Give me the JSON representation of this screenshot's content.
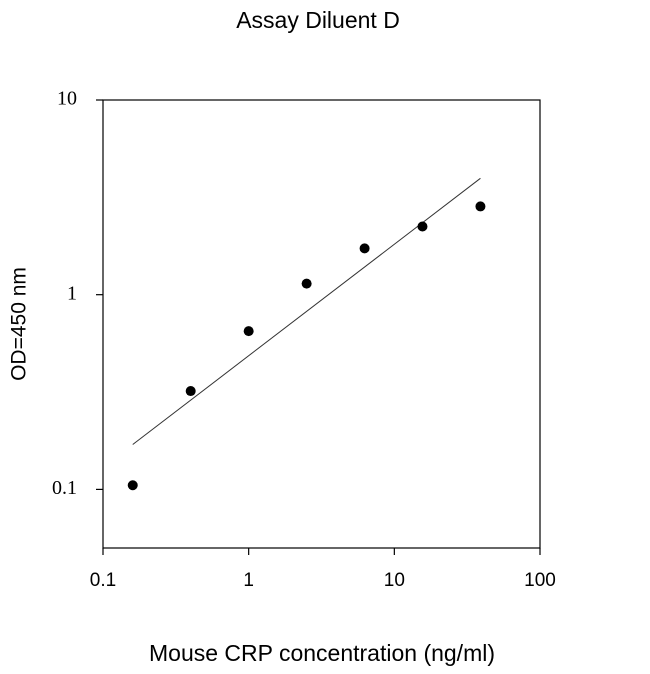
{
  "chart_data": {
    "type": "scatter",
    "title": "Assay Diluent D",
    "x_label": "Mouse CRP concentration (ng/ml)",
    "y_label": "OD=450 nm",
    "x": [
      0.16,
      0.4,
      1,
      2.5,
      6.25,
      15.6,
      39
    ],
    "values": [
      0.105,
      0.32,
      0.65,
      1.14,
      1.73,
      2.24,
      2.84
    ],
    "color": "#000000",
    "fit": {
      "x": [
        0.16,
        39
      ],
      "values": [
        0.17,
        3.96
      ],
      "color": "#333333"
    },
    "x_log": true,
    "y_log": true,
    "xlim": [
      0.1,
      100
    ],
    "xticks": [
      0.1,
      1,
      10,
      100
    ],
    "ylim": [
      0.05,
      10
    ],
    "yticks": [
      0.1,
      1,
      10
    ]
  }
}
